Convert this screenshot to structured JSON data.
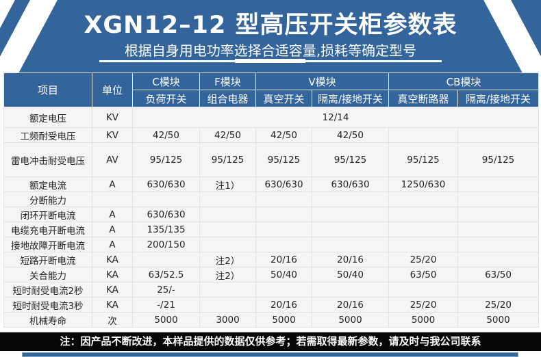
{
  "title": "XGN12–12 型高压开关柜参数表",
  "subtitle": "根据自身用电功率选择合适容量,损耗等确定型号",
  "colors": {
    "brand_blue": "#33649b",
    "note_bg": "#060606"
  },
  "table": {
    "header": {
      "item": "项目",
      "unit": "单位",
      "groups": [
        "C模块",
        "F模块",
        "V模块",
        "CB模块"
      ],
      "subs": [
        "负荷开关",
        "组合电器",
        "真空开关",
        "隔离/接地开关",
        "真空断路器",
        "隔离/接地开关"
      ]
    },
    "rated_voltage": {
      "name": "额定电压",
      "unit": "KV",
      "value": "12/14"
    },
    "rows": [
      {
        "name": "工频耐受电压",
        "unit": "KV",
        "cells": [
          "42/50",
          "42/50",
          "42/50",
          "42/50",
          "",
          ""
        ]
      },
      {
        "name": "雷电冲击耐受电压",
        "unit": "AV",
        "cells": [
          "95/125",
          "95/125",
          "95/125",
          "95/125",
          "95/125",
          "95/125"
        ]
      },
      {
        "name": "额定电流",
        "unit": "A",
        "cells": [
          "630/630",
          "注1）",
          "630/630",
          "630/630",
          "1250/630",
          ""
        ]
      },
      {
        "name": "分断能力",
        "unit": "",
        "cells": [
          "",
          "",
          "",
          "",
          "",
          ""
        ]
      },
      {
        "name": "闭环开断电流",
        "unit": "A",
        "cells": [
          "630/630",
          "",
          "",
          "",
          "",
          ""
        ]
      },
      {
        "name": "电缆充电开断电流",
        "unit": "A",
        "cells": [
          "135/135",
          "",
          "",
          "",
          "",
          ""
        ]
      },
      {
        "name": "接地故障开断电流",
        "unit": "A",
        "cells": [
          "200/150",
          "",
          "",
          "",
          "",
          ""
        ]
      },
      {
        "name": "短路开断电流",
        "unit": "KA",
        "cells": [
          "",
          "注2）",
          "20/16",
          "20/16",
          "25/20",
          ""
        ]
      },
      {
        "name": "关合能力",
        "unit": "KA",
        "cells": [
          "63/52.5",
          "注2）",
          "50/40",
          "50/40",
          "63/50",
          "63/50"
        ]
      },
      {
        "name": "短时耐受电流2秒",
        "unit": "KA",
        "cells": [
          "25/-",
          "",
          "",
          "",
          "",
          ""
        ]
      },
      {
        "name": "短时耐受电流3秒",
        "unit": "KA",
        "cells": [
          "-/21",
          "",
          "20/16",
          "20/16",
          "25/20",
          "25/20"
        ]
      },
      {
        "name": "机械寿命",
        "unit": "次",
        "cells": [
          "5000",
          "3000",
          "5000",
          "5000",
          "5000",
          "5000"
        ]
      }
    ]
  },
  "note": "注：因产品不断改进，本样品提供的数据仅供参考；若需取得最新参数，请及时与我公司联系"
}
